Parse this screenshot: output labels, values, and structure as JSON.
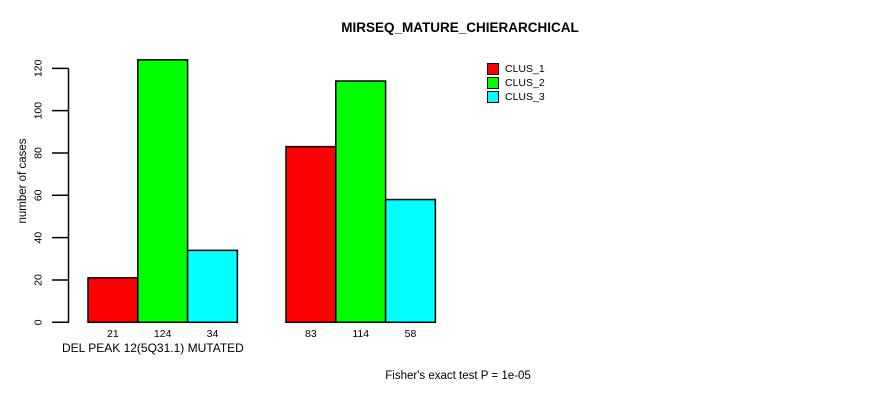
{
  "figure": {
    "background": "#ffffff",
    "text_color": "#000000"
  },
  "chart_data": {
    "type": "bar",
    "title": "MIRSEQ_MATURE_CHIERARCHICAL",
    "ylabel": "number of cases",
    "xlabel": "DEL PEAK 12(5Q31.1) MUTATED",
    "annotation": "Fisher's exact test P = 1e-05",
    "grid": false,
    "legend_position": "top-right",
    "yticks": [
      0,
      20,
      40,
      60,
      80,
      100,
      120
    ],
    "ylim": [
      0,
      130
    ],
    "groups": 2,
    "series": [
      {
        "name": "CLUS_1",
        "color": "#ff0000",
        "values": [
          21,
          83
        ]
      },
      {
        "name": "CLUS_2",
        "color": "#00ff00",
        "values": [
          124,
          114
        ]
      },
      {
        "name": "CLUS_3",
        "color": "#00ffff",
        "values": [
          34,
          58
        ]
      }
    ],
    "bar_value_labels": [
      [
        21,
        124,
        34
      ],
      [
        83,
        114,
        58
      ]
    ],
    "bar_border_color": "#000000"
  }
}
